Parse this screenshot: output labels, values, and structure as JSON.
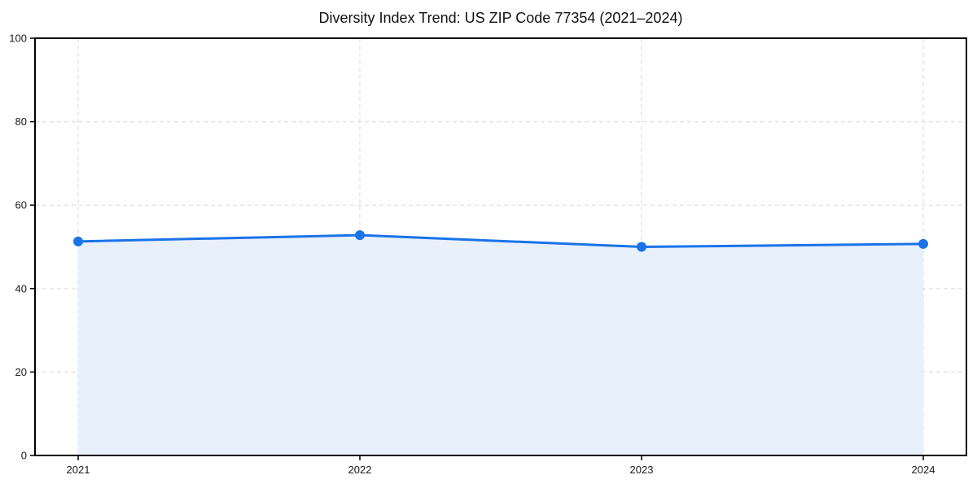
{
  "chart_data": {
    "type": "area",
    "title": "Diversity Index Trend: US ZIP Code 77354 (2021–2024)",
    "x": [
      "2021",
      "2022",
      "2023",
      "2024"
    ],
    "series": [
      {
        "name": "Diversity Index",
        "values": [
          51.3,
          52.8,
          50.0,
          50.7
        ]
      }
    ],
    "xlabel": "",
    "ylabel": "",
    "ylim": [
      0,
      100
    ],
    "yticks": [
      0,
      20,
      40,
      60,
      80,
      100
    ],
    "grid": "dashed-both-axes",
    "legend": "none",
    "frame": "full-box",
    "marker": "circle",
    "colors": {
      "line": "#1a73e8",
      "marker": "#1a73e8",
      "fill": "#e8f0fc",
      "grid": "#dedede",
      "axis": "#000000",
      "tick_text": "#1a1a1a",
      "background": "#ffffff"
    }
  }
}
